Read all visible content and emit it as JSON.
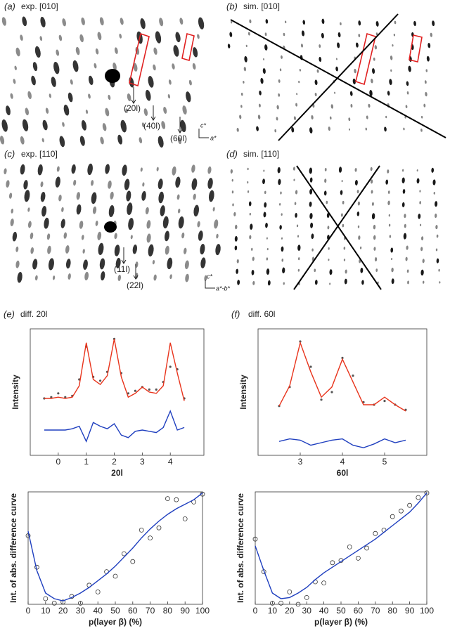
{
  "panels": [
    {
      "label": "(a)",
      "title": "exp. [010]",
      "annotations": [
        "(20l)",
        "(40l)",
        "(60l)"
      ],
      "axis_labels": [
        "c*",
        "a*"
      ]
    },
    {
      "label": "(b)",
      "title": "sim. [010]"
    },
    {
      "label": "(c)",
      "title": "exp. [110]",
      "annotations": [
        "(11l)",
        "(22l)"
      ],
      "axis_labels": [
        "c*",
        "a*-b*"
      ]
    },
    {
      "label": "(d)",
      "title": "sim. [110]"
    }
  ],
  "chart_data": [
    {
      "type": "line",
      "label": "(e)",
      "title": "diff. 20l",
      "xlabel": "20l",
      "ylabel": "Intensity",
      "x": [
        -0.5,
        -0.25,
        0,
        0.25,
        0.5,
        0.75,
        1,
        1.25,
        1.5,
        1.75,
        2,
        2.25,
        2.5,
        2.75,
        3,
        3.25,
        3.5,
        3.75,
        4,
        4.25,
        4.5
      ],
      "series": [
        {
          "style": "dots",
          "color": "#555555",
          "values": [
            4.5,
            4.6,
            4.9,
            4.6,
            4.7,
            6.0,
            8.6,
            6.2,
            5.9,
            6.6,
            9.2,
            6.5,
            4.9,
            5.1,
            5.4,
            5.2,
            5.2,
            5.8,
            7.0,
            6.8,
            4.5
          ]
        },
        {
          "style": "line",
          "color": "#e8341c",
          "values": [
            4.5,
            4.5,
            4.6,
            4.5,
            4.6,
            5.5,
            8.9,
            6.0,
            5.6,
            6.3,
            9.2,
            6.2,
            4.6,
            4.9,
            5.4,
            5.0,
            4.9,
            5.5,
            8.9,
            6.5,
            4.3
          ]
        },
        {
          "style": "line",
          "color": "#1f3fbf",
          "values": [
            2.0,
            2.0,
            2.0,
            2.0,
            2.1,
            2.3,
            1.1,
            2.6,
            2.3,
            2.1,
            2.5,
            1.6,
            1.4,
            1.9,
            2.0,
            1.9,
            1.8,
            2.2,
            3.5,
            2.0,
            2.2
          ]
        }
      ],
      "xlim": [
        -1,
        5.2
      ],
      "xticks": [
        0,
        1,
        2,
        3,
        4
      ],
      "ylim": [
        0,
        10
      ]
    },
    {
      "type": "line",
      "label": "(f)",
      "title": "diff. 60l",
      "xlabel": "60l",
      "ylabel": "Intensity",
      "x": [
        2.5,
        2.75,
        3,
        3.25,
        3.5,
        3.75,
        4,
        4.25,
        4.5,
        4.75,
        5,
        5.25,
        5.5
      ],
      "series": [
        {
          "style": "dots",
          "color": "#555555",
          "values": [
            3.9,
            5.4,
            9.0,
            7.0,
            4.4,
            5.0,
            7.7,
            6.3,
            4.2,
            4.0,
            4.3,
            4.0,
            3.6
          ]
        },
        {
          "style": "line",
          "color": "#e8341c",
          "values": [
            3.9,
            5.5,
            8.9,
            6.6,
            4.6,
            5.4,
            7.6,
            5.8,
            4.0,
            4.0,
            4.6,
            4.0,
            3.5
          ]
        },
        {
          "style": "line",
          "color": "#1f3fbf",
          "values": [
            1.1,
            1.3,
            1.2,
            0.8,
            1.0,
            1.2,
            1.3,
            0.8,
            0.6,
            0.9,
            1.3,
            1.0,
            1.2
          ]
        }
      ],
      "xlim": [
        2,
        6
      ],
      "xticks": [
        3,
        4,
        5
      ],
      "ylim": [
        0,
        10
      ]
    },
    {
      "type": "line",
      "xlabel": "p(layer β) (%)",
      "ylabel": "Int. of abs. difference curve",
      "x": [
        0,
        5,
        10,
        15,
        20,
        25,
        30,
        35,
        40,
        45,
        50,
        55,
        60,
        65,
        70,
        75,
        80,
        85,
        90,
        95,
        100
      ],
      "series": [
        {
          "style": "circles",
          "color": "#333333",
          "values": [
            6.1,
            3.3,
            0.5,
            0.1,
            0.2,
            0.7,
            0.1,
            1.7,
            1.1,
            2.9,
            2.5,
            4.5,
            3.8,
            6.6,
            5.9,
            6.8,
            9.4,
            9.3,
            7.6,
            9.1,
            9.8
          ]
        },
        {
          "style": "line",
          "color": "#1f3fbf",
          "values": [
            6.5,
            3.0,
            1.0,
            0.5,
            0.3,
            0.6,
            1.0,
            1.5,
            2.1,
            2.7,
            3.4,
            4.2,
            5.0,
            5.9,
            6.7,
            7.4,
            8.0,
            8.5,
            8.9,
            9.3,
            9.9
          ]
        }
      ],
      "xlim": [
        0,
        100
      ],
      "xticks": [
        0,
        10,
        20,
        30,
        40,
        50,
        60,
        70,
        80,
        90,
        100
      ],
      "ylim": [
        0,
        10
      ]
    },
    {
      "type": "line",
      "xlabel": "p(layer β) (%)",
      "ylabel": "Int. of abs. difference curve",
      "x": [
        0,
        5,
        10,
        15,
        20,
        25,
        30,
        35,
        40,
        45,
        50,
        55,
        60,
        65,
        70,
        75,
        80,
        85,
        90,
        95,
        100
      ],
      "series": [
        {
          "style": "circles",
          "color": "#333333",
          "values": [
            5.8,
            2.9,
            0.1,
            0.1,
            1.1,
            0.0,
            0.6,
            2.0,
            1.9,
            3.7,
            3.9,
            5.1,
            4.1,
            5.0,
            6.3,
            6.6,
            7.8,
            8.3,
            8.8,
            9.5,
            9.9
          ]
        },
        {
          "style": "line",
          "color": "#1f3fbf",
          "values": [
            5.2,
            3.0,
            1.0,
            0.5,
            0.6,
            1.0,
            1.5,
            2.2,
            2.8,
            3.3,
            3.8,
            4.3,
            4.8,
            5.3,
            5.8,
            6.4,
            7.0,
            7.6,
            8.2,
            9.0,
            9.9
          ]
        }
      ],
      "xlim": [
        0,
        100
      ],
      "xticks": [
        0,
        10,
        20,
        30,
        40,
        50,
        60,
        70,
        80,
        90,
        100
      ],
      "ylim": [
        0,
        10
      ]
    }
  ]
}
